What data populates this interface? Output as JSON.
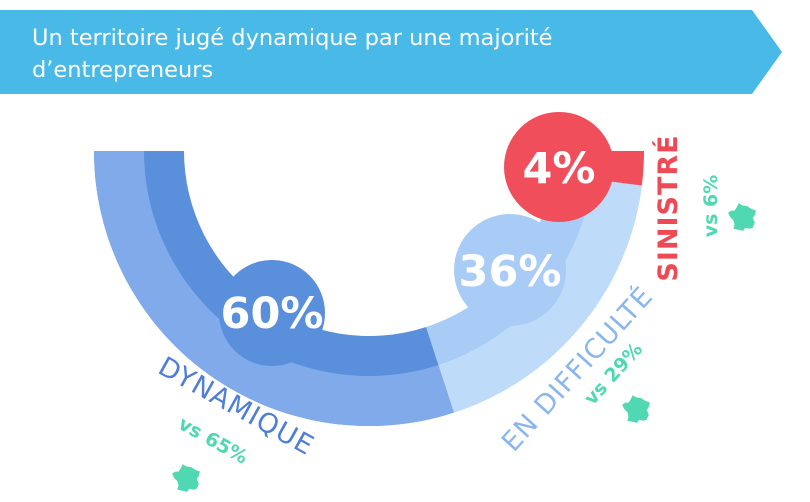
{
  "title": "Un territoire jugé dynamique par une majorité d’entrepreneurs",
  "chart_data": {
    "type": "pie",
    "variant": "half-donut",
    "title": "Un territoire jugé dynamique par une majorité d’entrepreneurs",
    "slices": [
      {
        "key": "dynamique",
        "label": "DYNAMIQUE",
        "value": 60,
        "value_label": "60%",
        "compare_label": "vs 65%",
        "compare_value": 65,
        "color": "#5a8fdc"
      },
      {
        "key": "difficulte",
        "label": "EN DIFFICULTÉ",
        "value": 36,
        "value_label": "36%",
        "compare_label": "vs 29%",
        "compare_value": 29,
        "color": "#a9ccf6"
      },
      {
        "key": "sinistre",
        "label": "SINISTRÉ",
        "value": 4,
        "value_label": "4%",
        "compare_label": "vs 6%",
        "compare_value": 6,
        "color": "#f04e5a"
      }
    ]
  },
  "colors": {
    "banner": "#49b9e8",
    "dynamique_dark": "#5a8fdc",
    "dynamique_light": "#80aaea",
    "difficulte_dark": "#a9ccf6",
    "difficulte_light": "#bfdbfa",
    "sinistre": "#f04e5a",
    "compare": "#4fd8b2",
    "label_dynamique": "#4e7fd6",
    "label_difficulte": "#8ab6f0",
    "label_sinistre": "#ee4a56"
  }
}
